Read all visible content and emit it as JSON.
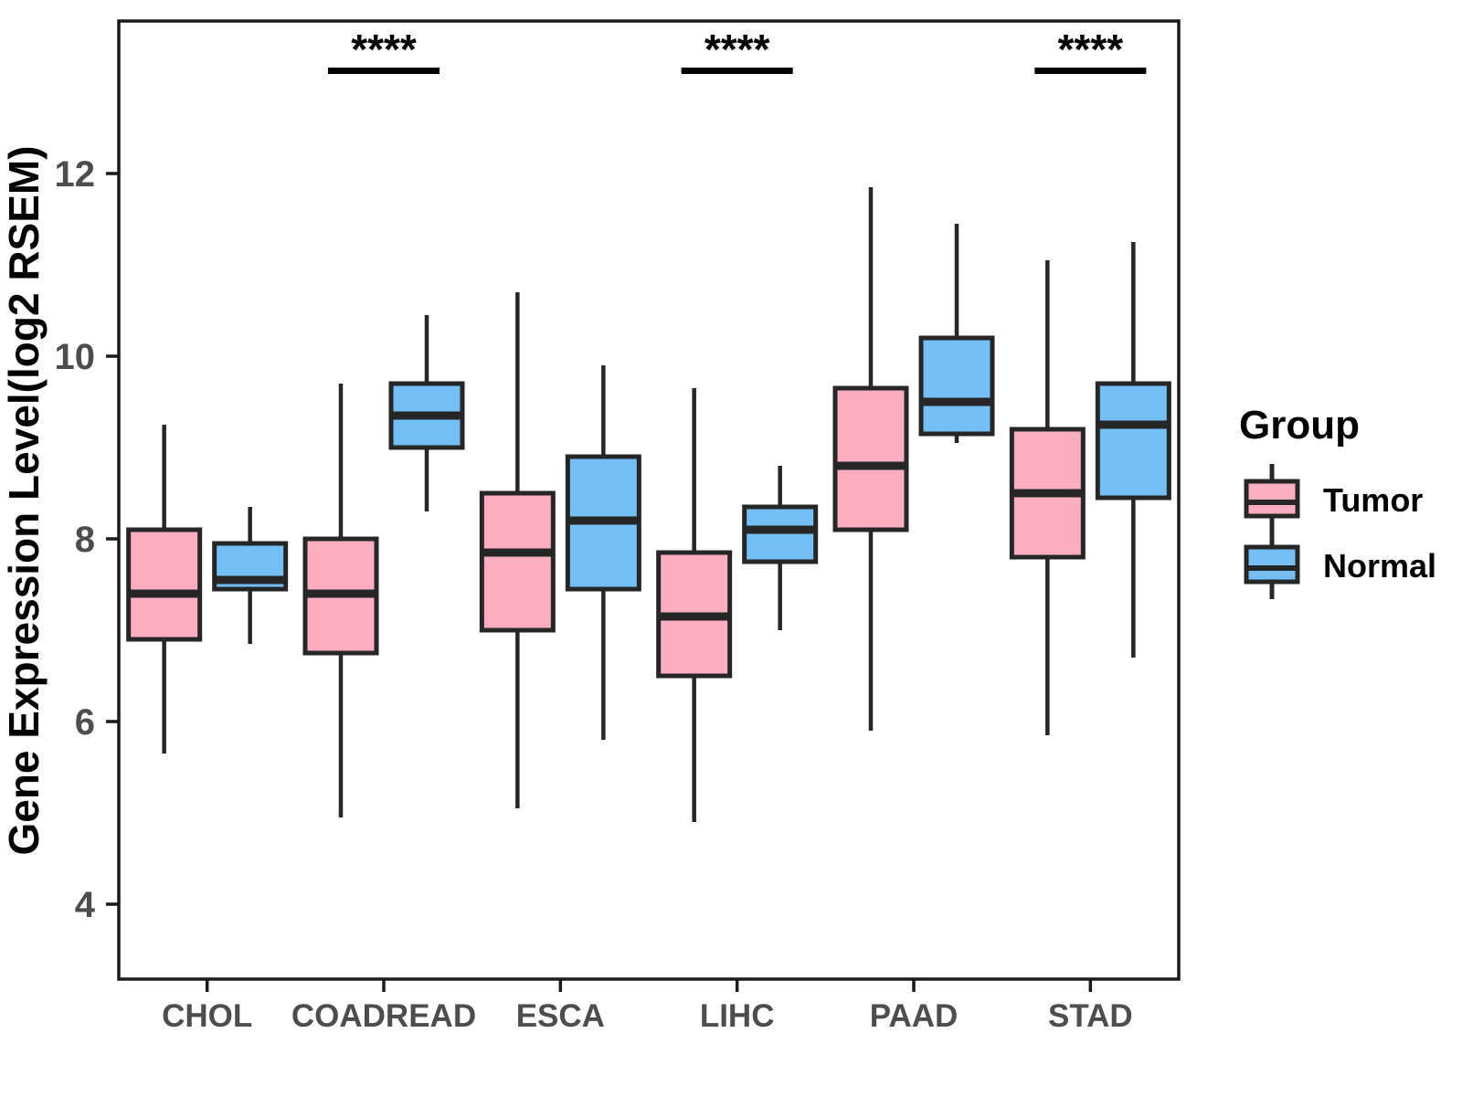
{
  "figure": {
    "background": "#ffffff",
    "panel": {
      "border_color": "#1a1a1a"
    },
    "axis_text_color": "#4d4d4d",
    "title_text_color": "#000000"
  },
  "chart_data": {
    "type": "boxplot",
    "title": "",
    "ylabel": "Gene Expression Level(log2 RSEM)",
    "xlabel": "",
    "yticks": [
      4,
      6,
      8,
      10,
      12
    ],
    "ylim": [
      3.18,
      13.67
    ],
    "grid": "off",
    "legend_position": "right",
    "legend_title": "Group",
    "categories": [
      "CHOL",
      "COADREAD",
      "ESCA",
      "LIHC",
      "PAAD",
      "STAD"
    ],
    "series": [
      {
        "name": "Tumor",
        "color": "#FCAEC0",
        "boxes": [
          {
            "category": "CHOL",
            "min": 5.65,
            "q1": 6.9,
            "median": 7.4,
            "q3": 8.1,
            "max": 9.25
          },
          {
            "category": "COADREAD",
            "min": 4.95,
            "q1": 6.75,
            "median": 7.4,
            "q3": 8.0,
            "max": 9.7
          },
          {
            "category": "ESCA",
            "min": 5.05,
            "q1": 7.0,
            "median": 7.85,
            "q3": 8.5,
            "max": 10.7
          },
          {
            "category": "LIHC",
            "min": 4.9,
            "q1": 6.5,
            "median": 7.15,
            "q3": 7.85,
            "max": 9.65
          },
          {
            "category": "PAAD",
            "min": 5.9,
            "q1": 8.1,
            "median": 8.8,
            "q3": 9.65,
            "max": 11.85
          },
          {
            "category": "STAD",
            "min": 5.85,
            "q1": 7.8,
            "median": 8.5,
            "q3": 9.2,
            "max": 11.05
          }
        ]
      },
      {
        "name": "Normal",
        "color": "#74BFF4",
        "boxes": [
          {
            "category": "CHOL",
            "min": 6.85,
            "q1": 7.45,
            "median": 7.55,
            "q3": 7.95,
            "max": 8.35
          },
          {
            "category": "COADREAD",
            "min": 8.3,
            "q1": 9.0,
            "median": 9.35,
            "q3": 9.7,
            "max": 10.45
          },
          {
            "category": "ESCA",
            "min": 5.8,
            "q1": 7.45,
            "median": 8.2,
            "q3": 8.9,
            "max": 9.9
          },
          {
            "category": "LIHC",
            "min": 7.0,
            "q1": 7.75,
            "median": 8.1,
            "q3": 8.35,
            "max": 8.8
          },
          {
            "category": "PAAD",
            "min": 9.05,
            "q1": 9.15,
            "median": 9.5,
            "q3": 10.2,
            "max": 11.45
          },
          {
            "category": "STAD",
            "min": 6.7,
            "q1": 8.45,
            "median": 9.25,
            "q3": 9.7,
            "max": 11.25
          }
        ]
      }
    ],
    "significance": [
      {
        "category": "COADREAD",
        "label": "****"
      },
      {
        "category": "LIHC",
        "label": "****"
      },
      {
        "category": "STAD",
        "label": "****"
      }
    ]
  }
}
